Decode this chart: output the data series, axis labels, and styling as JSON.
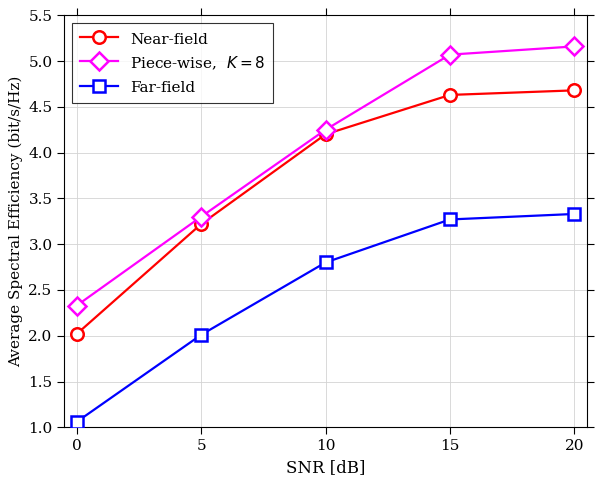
{
  "snr": [
    0,
    5,
    10,
    15,
    20
  ],
  "near_field": [
    2.02,
    3.22,
    4.2,
    4.63,
    4.68
  ],
  "piece_wise": [
    2.33,
    3.3,
    4.25,
    5.07,
    5.16
  ],
  "far_field": [
    1.06,
    2.01,
    2.8,
    3.27,
    3.33
  ],
  "near_field_color": "#ff0000",
  "piece_wise_color": "#ff00ff",
  "far_field_color": "#0000ff",
  "xlabel": "SNR [dB]",
  "ylabel": "Average Spectral Efficiency (bit/s/Hz)",
  "ylim": [
    1.0,
    5.5
  ],
  "xlim": [
    -0.5,
    20.5
  ],
  "yticks": [
    1.0,
    1.5,
    2.0,
    2.5,
    3.0,
    3.5,
    4.0,
    4.5,
    5.0,
    5.5
  ],
  "xticks": [
    0,
    5,
    10,
    15,
    20
  ],
  "legend_near": "Near-field",
  "legend_piecewise": "Piece-wise,  $K = 8$",
  "legend_far": "Far-field",
  "linewidth": 1.6,
  "markersize": 9
}
